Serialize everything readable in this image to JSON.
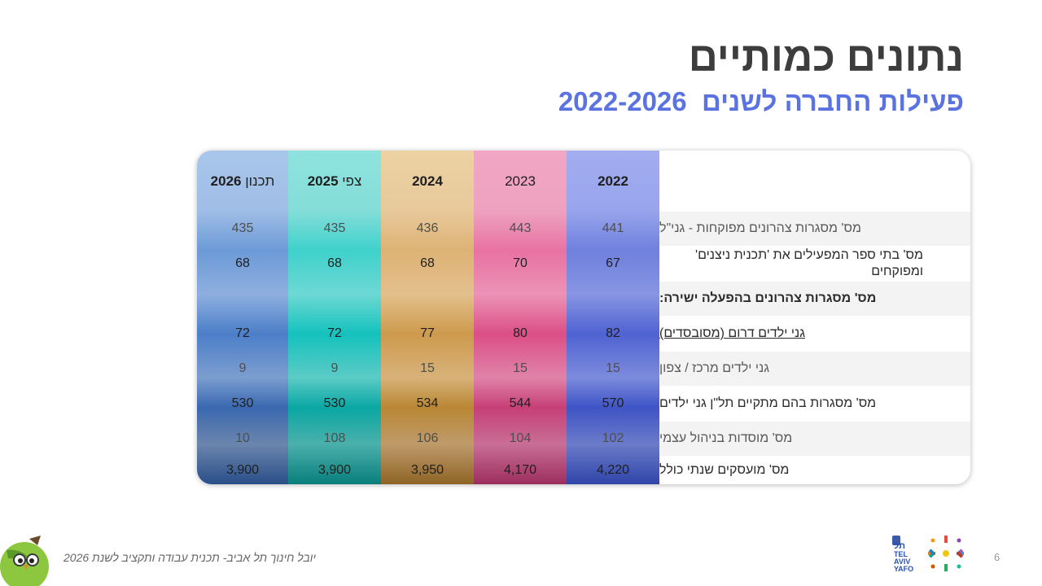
{
  "slide": {
    "title": "נתונים כמותיים",
    "subtitle": "פעילות החברה לשנים  2022-2026",
    "footer": "יובל חינוך תל אביב- תכנית עבודה ותקציב לשנת 2026",
    "page_number": "6"
  },
  "table": {
    "headers": [
      {
        "pre": "",
        "bold": "2022",
        "post": ""
      },
      {
        "pre": "2023",
        "bold": "",
        "post": ""
      },
      {
        "pre": "",
        "bold": "2024",
        "post": ""
      },
      {
        "pre": "צפי ",
        "bold": "2025",
        "post": ""
      },
      {
        "pre": "תכנון ",
        "bold": "2026",
        "post": ""
      }
    ],
    "rows": [
      {
        "label": "מס' מסגרות צהרונים מפוקחות - גני\"ל",
        "values": [
          "441",
          "443",
          "436",
          "435",
          "435"
        ]
      },
      {
        "label": "מס' בתי ספר המפעילים את 'תכנית ניצנים' ומפוקחים",
        "values": [
          "67",
          "70",
          "68",
          "68",
          "68"
        ]
      },
      {
        "label": "מס' מסגרות צהרונים בהפעלה ישירה:",
        "values": [
          "",
          "",
          "",
          "",
          ""
        ]
      },
      {
        "label": "גני ילדים דרום (מסובסדים)",
        "values": [
          "82",
          "80",
          "77",
          "72",
          "72"
        ]
      },
      {
        "label": "גני ילדים מרכז / צפון",
        "values": [
          "15",
          "15",
          "15",
          "9",
          "9"
        ]
      },
      {
        "label": "מס' מסגרות בהם מתקיים תל\"ן גני ילדים",
        "values": [
          "570",
          "544",
          "534",
          "530",
          "530"
        ]
      },
      {
        "label": "מס' מוסדות בניהול עצמי",
        "values": [
          "102",
          "104",
          "106",
          "108",
          "10"
        ]
      },
      {
        "label": "מס' מועסקים שנתי כולל",
        "values": [
          "4,220",
          "4,170",
          "3,950",
          "3,900",
          "3,900"
        ]
      }
    ]
  },
  "colors": {
    "title": "#3d3d3d",
    "subtitle": "#5b73e0",
    "col_2022": "#5a6fd6",
    "col_2023": "#e05a8e",
    "col_2024": "#d9a55a",
    "col_2025": "#1ec8c3",
    "col_2026": "#4a7ec8"
  },
  "logos": {
    "tel_aviv_logo_text": "תל אביב TEL AVIV YAFO יפו"
  }
}
